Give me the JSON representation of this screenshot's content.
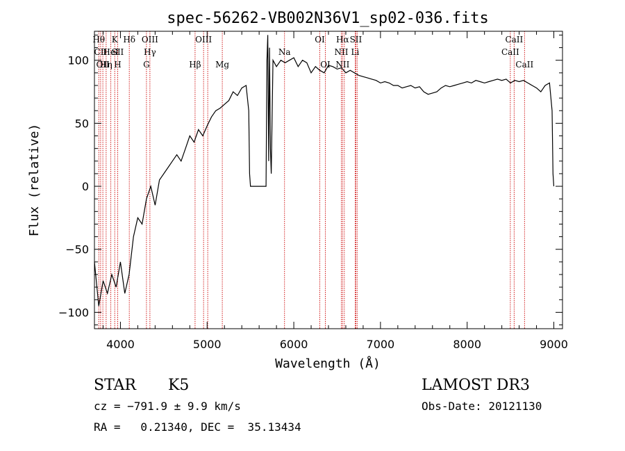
{
  "chart_data": {
    "type": "line",
    "title": "spec-56262-VB002N36V1_sp02-036.fits",
    "xlabel": "Wavelength (Å)",
    "ylabel": "Flux (relative)",
    "xlim": [
      3700,
      9100
    ],
    "ylim": [
      -113,
      123
    ],
    "xticks": [
      4000,
      5000,
      6000,
      7000,
      8000,
      9000
    ],
    "yticks": [
      -100,
      -50,
      0,
      50,
      100
    ],
    "grid": false,
    "line_color": "#000000",
    "marker_color": "#cc0000",
    "series": [
      {
        "name": "spectrum",
        "x": [
          3700,
          3750,
          3800,
          3850,
          3900,
          3950,
          4000,
          4050,
          4100,
          4150,
          4200,
          4250,
          4300,
          4350,
          4400,
          4450,
          4500,
          4550,
          4600,
          4650,
          4700,
          4750,
          4800,
          4850,
          4900,
          4950,
          5000,
          5050,
          5100,
          5150,
          5200,
          5250,
          5300,
          5350,
          5400,
          5450,
          5480,
          5490,
          5500,
          5550,
          5600,
          5650,
          5680,
          5690,
          5700,
          5710,
          5720,
          5730,
          5740,
          5760,
          5800,
          5850,
          5900,
          5950,
          6000,
          6050,
          6100,
          6150,
          6200,
          6250,
          6300,
          6350,
          6400,
          6450,
          6500,
          6550,
          6600,
          6650,
          6700,
          6750,
          6800,
          6850,
          6900,
          6950,
          7000,
          7050,
          7100,
          7150,
          7200,
          7250,
          7300,
          7350,
          7400,
          7450,
          7500,
          7550,
          7600,
          7650,
          7700,
          7750,
          7800,
          7850,
          7900,
          7950,
          8000,
          8050,
          8100,
          8150,
          8200,
          8250,
          8300,
          8350,
          8400,
          8450,
          8500,
          8550,
          8600,
          8650,
          8700,
          8750,
          8800,
          8850,
          8900,
          8950,
          8980,
          8990,
          9000
        ],
        "y": [
          -60,
          -95,
          -75,
          -85,
          -70,
          -80,
          -60,
          -85,
          -70,
          -40,
          -25,
          -30,
          -10,
          0,
          -15,
          5,
          10,
          15,
          20,
          25,
          20,
          30,
          40,
          35,
          45,
          40,
          48,
          55,
          60,
          62,
          65,
          68,
          75,
          72,
          78,
          80,
          60,
          10,
          0,
          0,
          0,
          0,
          0,
          100,
          120,
          20,
          110,
          30,
          10,
          100,
          95,
          100,
          98,
          100,
          102,
          95,
          100,
          98,
          90,
          95,
          92,
          90,
          96,
          95,
          93,
          94,
          90,
          92,
          90,
          88,
          87,
          86,
          85,
          84,
          82,
          83,
          82,
          80,
          80,
          78,
          79,
          80,
          78,
          79,
          75,
          73,
          74,
          75,
          78,
          80,
          79,
          80,
          81,
          82,
          83,
          82,
          84,
          83,
          82,
          83,
          84,
          85,
          84,
          85,
          82,
          84,
          83,
          84,
          82,
          80,
          78,
          75,
          80,
          82,
          60,
          10,
          0
        ]
      }
    ],
    "lines": [
      {
        "x": 3750,
        "labels": [
          "Hθ"
        ],
        "rows": [
          0
        ]
      },
      {
        "x": 3771,
        "labels": [
          "CII"
        ],
        "rows": [
          1
        ]
      },
      {
        "x": 3797,
        "labels": [
          "OII"
        ],
        "rows": [
          2
        ]
      },
      {
        "x": 3835,
        "labels": [
          "Hη"
        ],
        "rows": [
          2
        ]
      },
      {
        "x": 3889,
        "labels": [
          "HeI"
        ],
        "rows": [
          1
        ]
      },
      {
        "x": 3934,
        "labels": [
          "K"
        ],
        "rows": [
          0
        ]
      },
      {
        "x": 3968,
        "labels": [
          "H",
          "SII"
        ],
        "rows": [
          2,
          1
        ]
      },
      {
        "x": 4102,
        "labels": [
          "Hδ"
        ],
        "rows": [
          0
        ]
      },
      {
        "x": 4300,
        "labels": [
          "G"
        ],
        "rows": [
          2
        ]
      },
      {
        "x": 4340,
        "labels": [
          "OIII",
          "Hγ"
        ],
        "rows": [
          0,
          1
        ]
      },
      {
        "x": 4861,
        "labels": [
          "Hβ"
        ],
        "rows": [
          2
        ]
      },
      {
        "x": 4959,
        "labels": [
          "OIII"
        ],
        "rows": [
          0,
          1
        ]
      },
      {
        "x": 5007,
        "labels": [],
        "rows": []
      },
      {
        "x": 5175,
        "labels": [
          "Mg"
        ],
        "rows": [
          2
        ]
      },
      {
        "x": 5893,
        "labels": [
          "Na"
        ],
        "rows": [
          1
        ]
      },
      {
        "x": 6300,
        "labels": [
          "OI"
        ],
        "rows": [
          0
        ]
      },
      {
        "x": 6364,
        "labels": [
          "OI"
        ],
        "rows": [
          2
        ]
      },
      {
        "x": 6548,
        "labels": [
          "NII"
        ],
        "rows": [
          1
        ]
      },
      {
        "x": 6563,
        "labels": [
          "Hα",
          "NII"
        ],
        "rows": [
          0,
          2
        ]
      },
      {
        "x": 6583,
        "labels": [],
        "rows": []
      },
      {
        "x": 6708,
        "labels": [
          "Li"
        ],
        "rows": [
          1
        ]
      },
      {
        "x": 6716,
        "labels": [
          "SII"
        ],
        "rows": [
          0,
          2
        ]
      },
      {
        "x": 6731,
        "labels": [],
        "rows": []
      },
      {
        "x": 8498,
        "labels": [
          "CaII"
        ],
        "rows": [
          1
        ]
      },
      {
        "x": 8542,
        "labels": [
          "CaII"
        ],
        "rows": [
          0
        ]
      },
      {
        "x": 8662,
        "labels": [
          "CaII"
        ],
        "rows": [
          2
        ]
      }
    ]
  },
  "info": {
    "object_class": "STAR",
    "subclass": "K5",
    "survey": "LAMOST DR3",
    "cz": "cz = −791.9 ± 9.9 km/s",
    "obs_date": "Obs-Date: 20121130",
    "coords": "RA =   0.21340, DEC =  35.13434"
  }
}
